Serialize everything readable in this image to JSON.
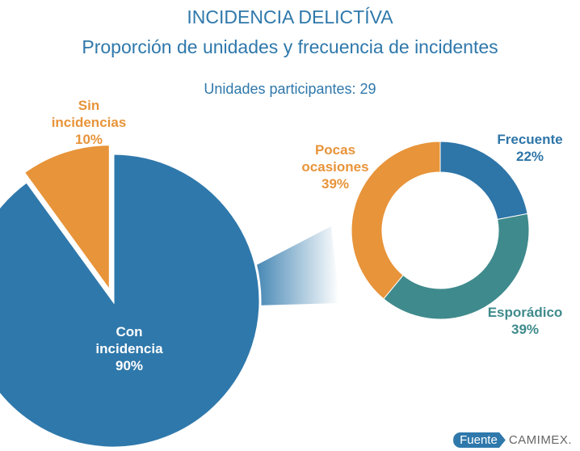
{
  "chart_data": [
    {
      "type": "pie",
      "title": "INCIDENCIA DELICTÍVA",
      "subtitle": "Proporción de unidades y frecuencia de incidentes",
      "annotation": "Unidades participantes: 29",
      "source_label": "Fuente",
      "source": "CAMIMEX.",
      "categories": [
        "Con incidencia",
        "Sin incidencias"
      ],
      "values": [
        90,
        10
      ],
      "value_labels": [
        "90%",
        "10%"
      ],
      "colors": [
        "#2f78ab",
        "#e8943a"
      ]
    },
    {
      "type": "donut",
      "categories": [
        "Frecuente",
        "Esporádico",
        "Pocas ocasiones"
      ],
      "values": [
        22,
        39,
        39
      ],
      "value_labels": [
        "22%",
        "39%",
        "39%"
      ],
      "colors": [
        "#2e75a8",
        "#3f8a8c",
        "#e8943a"
      ]
    }
  ]
}
